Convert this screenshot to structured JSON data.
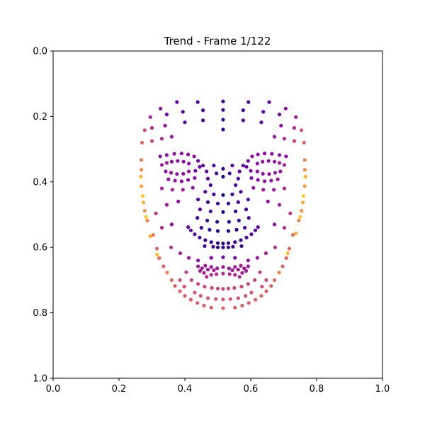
{
  "chart_data": {
    "type": "scatter",
    "title": "Trend - Frame 1/122",
    "xlabel": "",
    "ylabel": "",
    "xlim": [
      0.0,
      1.0
    ],
    "ylim": [
      1.0,
      0.0
    ],
    "y_inverted": true,
    "grid": false,
    "legend": "none",
    "colormap": "plasma",
    "colormap_stops": [
      "#0d0887",
      "#5302a3",
      "#8b0aa5",
      "#b83289",
      "#db5c68",
      "#f48849",
      "#febd2a",
      "#f0f921"
    ],
    "x_ticks": [
      "0.0",
      "0.2",
      "0.4",
      "0.6",
      "0.8",
      "1.0"
    ],
    "y_ticks": [
      "0.0",
      "0.2",
      "0.4",
      "0.6",
      "0.8",
      "1.0"
    ],
    "points": [
      [
        0.376,
        0.156,
        0.18
      ],
      [
        0.439,
        0.156,
        0.12
      ],
      [
        0.516,
        0.154,
        0.08
      ],
      [
        0.593,
        0.156,
        0.12
      ],
      [
        0.656,
        0.156,
        0.18
      ],
      [
        0.326,
        0.176,
        0.28
      ],
      [
        0.706,
        0.176,
        0.28
      ],
      [
        0.295,
        0.202,
        0.36
      ],
      [
        0.737,
        0.202,
        0.36
      ],
      [
        0.345,
        0.194,
        0.2
      ],
      [
        0.394,
        0.186,
        0.15
      ],
      [
        0.455,
        0.181,
        0.12
      ],
      [
        0.516,
        0.18,
        0.08
      ],
      [
        0.577,
        0.181,
        0.12
      ],
      [
        0.638,
        0.186,
        0.15
      ],
      [
        0.687,
        0.194,
        0.2
      ],
      [
        0.278,
        0.242,
        0.52
      ],
      [
        0.754,
        0.242,
        0.52
      ],
      [
        0.3,
        0.235,
        0.4
      ],
      [
        0.732,
        0.235,
        0.4
      ],
      [
        0.34,
        0.228,
        0.3
      ],
      [
        0.692,
        0.228,
        0.3
      ],
      [
        0.4,
        0.218,
        0.18
      ],
      [
        0.632,
        0.218,
        0.18
      ],
      [
        0.455,
        0.212,
        0.12
      ],
      [
        0.577,
        0.212,
        0.12
      ],
      [
        0.516,
        0.21,
        0.08
      ],
      [
        0.27,
        0.28,
        0.6
      ],
      [
        0.762,
        0.28,
        0.6
      ],
      [
        0.3,
        0.275,
        0.48
      ],
      [
        0.732,
        0.275,
        0.48
      ],
      [
        0.33,
        0.268,
        0.4
      ],
      [
        0.702,
        0.268,
        0.4
      ],
      [
        0.36,
        0.262,
        0.32
      ],
      [
        0.672,
        0.262,
        0.32
      ],
      [
        0.516,
        0.24,
        0.08
      ],
      [
        0.268,
        0.333,
        0.68
      ],
      [
        0.764,
        0.333,
        0.68
      ],
      [
        0.268,
        0.363,
        0.72
      ],
      [
        0.764,
        0.363,
        0.72
      ],
      [
        0.266,
        0.384,
        0.85
      ],
      [
        0.766,
        0.384,
        0.85
      ],
      [
        0.268,
        0.413,
        0.78
      ],
      [
        0.764,
        0.413,
        0.78
      ],
      [
        0.272,
        0.443,
        0.88
      ],
      [
        0.76,
        0.443,
        0.88
      ],
      [
        0.274,
        0.463,
        0.82
      ],
      [
        0.758,
        0.463,
        0.82
      ],
      [
        0.278,
        0.488,
        0.75
      ],
      [
        0.754,
        0.488,
        0.75
      ],
      [
        0.282,
        0.507,
        0.88
      ],
      [
        0.75,
        0.507,
        0.88
      ],
      [
        0.286,
        0.518,
        0.7
      ],
      [
        0.746,
        0.518,
        0.7
      ],
      [
        0.295,
        0.566,
        0.82
      ],
      [
        0.737,
        0.557,
        0.82
      ],
      [
        0.304,
        0.562,
        0.65
      ],
      [
        0.728,
        0.562,
        0.65
      ],
      [
        0.315,
        0.604,
        0.6
      ],
      [
        0.717,
        0.604,
        0.6
      ],
      [
        0.316,
        0.622,
        0.85
      ],
      [
        0.712,
        0.618,
        0.85
      ],
      [
        0.322,
        0.633,
        0.62
      ],
      [
        0.708,
        0.633,
        0.62
      ],
      [
        0.335,
        0.658,
        0.58
      ],
      [
        0.697,
        0.658,
        0.58
      ],
      [
        0.346,
        0.677,
        0.68
      ],
      [
        0.686,
        0.677,
        0.68
      ],
      [
        0.36,
        0.7,
        0.62
      ],
      [
        0.672,
        0.7,
        0.62
      ],
      [
        0.37,
        0.718,
        0.58
      ],
      [
        0.662,
        0.718,
        0.58
      ],
      [
        0.385,
        0.734,
        0.58
      ],
      [
        0.647,
        0.734,
        0.58
      ],
      [
        0.4,
        0.748,
        0.58
      ],
      [
        0.632,
        0.748,
        0.58
      ],
      [
        0.418,
        0.76,
        0.58
      ],
      [
        0.614,
        0.76,
        0.58
      ],
      [
        0.438,
        0.77,
        0.58
      ],
      [
        0.594,
        0.77,
        0.58
      ],
      [
        0.458,
        0.778,
        0.58
      ],
      [
        0.574,
        0.778,
        0.58
      ],
      [
        0.48,
        0.784,
        0.58
      ],
      [
        0.552,
        0.784,
        0.58
      ],
      [
        0.516,
        0.786,
        0.6
      ],
      [
        0.325,
        0.322,
        0.3
      ],
      [
        0.345,
        0.318,
        0.3
      ],
      [
        0.368,
        0.314,
        0.3
      ],
      [
        0.39,
        0.313,
        0.3
      ],
      [
        0.41,
        0.316,
        0.3
      ],
      [
        0.428,
        0.322,
        0.3
      ],
      [
        0.604,
        0.322,
        0.3
      ],
      [
        0.622,
        0.316,
        0.3
      ],
      [
        0.642,
        0.313,
        0.3
      ],
      [
        0.664,
        0.314,
        0.3
      ],
      [
        0.687,
        0.318,
        0.3
      ],
      [
        0.707,
        0.322,
        0.3
      ],
      [
        0.33,
        0.348,
        0.35
      ],
      [
        0.345,
        0.342,
        0.35
      ],
      [
        0.36,
        0.338,
        0.3
      ],
      [
        0.378,
        0.336,
        0.3
      ],
      [
        0.396,
        0.338,
        0.3
      ],
      [
        0.412,
        0.344,
        0.3
      ],
      [
        0.62,
        0.344,
        0.3
      ],
      [
        0.636,
        0.338,
        0.3
      ],
      [
        0.654,
        0.336,
        0.3
      ],
      [
        0.672,
        0.338,
        0.3
      ],
      [
        0.687,
        0.342,
        0.35
      ],
      [
        0.702,
        0.348,
        0.35
      ],
      [
        0.342,
        0.368,
        0.3
      ],
      [
        0.358,
        0.372,
        0.3
      ],
      [
        0.376,
        0.376,
        0.3
      ],
      [
        0.395,
        0.375,
        0.3
      ],
      [
        0.412,
        0.368,
        0.3
      ],
      [
        0.62,
        0.368,
        0.3
      ],
      [
        0.637,
        0.375,
        0.3
      ],
      [
        0.656,
        0.376,
        0.3
      ],
      [
        0.674,
        0.372,
        0.3
      ],
      [
        0.69,
        0.368,
        0.3
      ],
      [
        0.44,
        0.336,
        0.22
      ],
      [
        0.445,
        0.354,
        0.2
      ],
      [
        0.432,
        0.366,
        0.25
      ],
      [
        0.592,
        0.336,
        0.22
      ],
      [
        0.587,
        0.354,
        0.2
      ],
      [
        0.6,
        0.366,
        0.25
      ],
      [
        0.35,
        0.392,
        0.32
      ],
      [
        0.37,
        0.396,
        0.32
      ],
      [
        0.39,
        0.398,
        0.3
      ],
      [
        0.41,
        0.394,
        0.28
      ],
      [
        0.43,
        0.388,
        0.26
      ],
      [
        0.602,
        0.388,
        0.26
      ],
      [
        0.622,
        0.394,
        0.28
      ],
      [
        0.642,
        0.398,
        0.3
      ],
      [
        0.662,
        0.396,
        0.32
      ],
      [
        0.682,
        0.392,
        0.32
      ],
      [
        0.33,
        0.42,
        0.38
      ],
      [
        0.362,
        0.424,
        0.36
      ],
      [
        0.394,
        0.424,
        0.34
      ],
      [
        0.424,
        0.418,
        0.3
      ],
      [
        0.608,
        0.418,
        0.3
      ],
      [
        0.638,
        0.424,
        0.34
      ],
      [
        0.67,
        0.424,
        0.36
      ],
      [
        0.702,
        0.42,
        0.38
      ],
      [
        0.455,
        0.35,
        0.16
      ],
      [
        0.466,
        0.368,
        0.16
      ],
      [
        0.47,
        0.39,
        0.14
      ],
      [
        0.478,
        0.41,
        0.12
      ],
      [
        0.577,
        0.35,
        0.16
      ],
      [
        0.566,
        0.368,
        0.16
      ],
      [
        0.562,
        0.39,
        0.14
      ],
      [
        0.554,
        0.41,
        0.12
      ],
      [
        0.488,
        0.35,
        0.12
      ],
      [
        0.496,
        0.374,
        0.1
      ],
      [
        0.516,
        0.36,
        0.08
      ],
      [
        0.516,
        0.384,
        0.06
      ],
      [
        0.544,
        0.35,
        0.12
      ],
      [
        0.536,
        0.374,
        0.1
      ],
      [
        0.462,
        0.43,
        0.12
      ],
      [
        0.488,
        0.438,
        0.08
      ],
      [
        0.516,
        0.44,
        0.04
      ],
      [
        0.544,
        0.438,
        0.08
      ],
      [
        0.57,
        0.43,
        0.12
      ],
      [
        0.44,
        0.454,
        0.14
      ],
      [
        0.47,
        0.462,
        0.1
      ],
      [
        0.5,
        0.466,
        0.06
      ],
      [
        0.532,
        0.466,
        0.06
      ],
      [
        0.562,
        0.462,
        0.1
      ],
      [
        0.592,
        0.454,
        0.14
      ],
      [
        0.446,
        0.484,
        0.12
      ],
      [
        0.478,
        0.49,
        0.08
      ],
      [
        0.516,
        0.492,
        0.04
      ],
      [
        0.554,
        0.49,
        0.08
      ],
      [
        0.586,
        0.484,
        0.12
      ],
      [
        0.438,
        0.51,
        0.12
      ],
      [
        0.468,
        0.518,
        0.08
      ],
      [
        0.498,
        0.522,
        0.04
      ],
      [
        0.534,
        0.522,
        0.04
      ],
      [
        0.564,
        0.518,
        0.08
      ],
      [
        0.594,
        0.51,
        0.12
      ],
      [
        0.45,
        0.54,
        0.1
      ],
      [
        0.475,
        0.546,
        0.06
      ],
      [
        0.5,
        0.55,
        0.04
      ],
      [
        0.532,
        0.55,
        0.04
      ],
      [
        0.557,
        0.546,
        0.06
      ],
      [
        0.582,
        0.54,
        0.1
      ],
      [
        0.41,
        0.538,
        0.18
      ],
      [
        0.622,
        0.538,
        0.18
      ],
      [
        0.43,
        0.56,
        0.14
      ],
      [
        0.445,
        0.57,
        0.12
      ],
      [
        0.462,
        0.578,
        0.1
      ],
      [
        0.48,
        0.584,
        0.08
      ],
      [
        0.5,
        0.587,
        0.06
      ],
      [
        0.516,
        0.588,
        0.05
      ],
      [
        0.532,
        0.587,
        0.06
      ],
      [
        0.552,
        0.584,
        0.08
      ],
      [
        0.57,
        0.578,
        0.1
      ],
      [
        0.587,
        0.57,
        0.12
      ],
      [
        0.602,
        0.56,
        0.14
      ],
      [
        0.418,
        0.548,
        0.16
      ],
      [
        0.614,
        0.548,
        0.16
      ],
      [
        0.486,
        0.598,
        0.1
      ],
      [
        0.5,
        0.6,
        0.08
      ],
      [
        0.516,
        0.6,
        0.06
      ],
      [
        0.532,
        0.6,
        0.08
      ],
      [
        0.546,
        0.598,
        0.1
      ],
      [
        0.46,
        0.596,
        0.12
      ],
      [
        0.572,
        0.596,
        0.12
      ],
      [
        0.33,
        0.54,
        0.4
      ],
      [
        0.702,
        0.54,
        0.4
      ],
      [
        0.36,
        0.53,
        0.3
      ],
      [
        0.672,
        0.53,
        0.3
      ],
      [
        0.312,
        0.496,
        0.44
      ],
      [
        0.72,
        0.496,
        0.44
      ],
      [
        0.345,
        0.47,
        0.34
      ],
      [
        0.687,
        0.47,
        0.34
      ],
      [
        0.38,
        0.46,
        0.3
      ],
      [
        0.652,
        0.46,
        0.3
      ],
      [
        0.358,
        0.6,
        0.42
      ],
      [
        0.674,
        0.6,
        0.42
      ],
      [
        0.386,
        0.618,
        0.38
      ],
      [
        0.646,
        0.618,
        0.38
      ],
      [
        0.412,
        0.632,
        0.34
      ],
      [
        0.62,
        0.632,
        0.34
      ],
      [
        0.44,
        0.64,
        0.3
      ],
      [
        0.592,
        0.64,
        0.3
      ],
      [
        0.48,
        0.632,
        0.24
      ],
      [
        0.516,
        0.63,
        0.22
      ],
      [
        0.552,
        0.632,
        0.24
      ],
      [
        0.44,
        0.658,
        0.34
      ],
      [
        0.452,
        0.664,
        0.34
      ],
      [
        0.462,
        0.656,
        0.34
      ],
      [
        0.47,
        0.668,
        0.34
      ],
      [
        0.48,
        0.66,
        0.34
      ],
      [
        0.488,
        0.67,
        0.34
      ],
      [
        0.498,
        0.664,
        0.34
      ],
      [
        0.516,
        0.66,
        0.34
      ],
      [
        0.534,
        0.664,
        0.34
      ],
      [
        0.544,
        0.67,
        0.34
      ],
      [
        0.552,
        0.66,
        0.34
      ],
      [
        0.562,
        0.668,
        0.34
      ],
      [
        0.57,
        0.656,
        0.34
      ],
      [
        0.58,
        0.664,
        0.34
      ],
      [
        0.592,
        0.658,
        0.34
      ],
      [
        0.446,
        0.672,
        0.36
      ],
      [
        0.458,
        0.678,
        0.36
      ],
      [
        0.574,
        0.678,
        0.36
      ],
      [
        0.586,
        0.672,
        0.36
      ],
      [
        0.466,
        0.69,
        0.4
      ],
      [
        0.48,
        0.684,
        0.4
      ],
      [
        0.496,
        0.682,
        0.4
      ],
      [
        0.516,
        0.68,
        0.4
      ],
      [
        0.536,
        0.682,
        0.4
      ],
      [
        0.552,
        0.684,
        0.4
      ],
      [
        0.566,
        0.69,
        0.4
      ],
      [
        0.404,
        0.676,
        0.46
      ],
      [
        0.628,
        0.676,
        0.46
      ],
      [
        0.42,
        0.7,
        0.48
      ],
      [
        0.44,
        0.712,
        0.5
      ],
      [
        0.46,
        0.72,
        0.5
      ],
      [
        0.482,
        0.724,
        0.5
      ],
      [
        0.5,
        0.726,
        0.5
      ],
      [
        0.516,
        0.727,
        0.5
      ],
      [
        0.532,
        0.726,
        0.5
      ],
      [
        0.55,
        0.724,
        0.5
      ],
      [
        0.572,
        0.72,
        0.5
      ],
      [
        0.592,
        0.712,
        0.5
      ],
      [
        0.612,
        0.7,
        0.48
      ],
      [
        0.43,
        0.738,
        0.55
      ],
      [
        0.448,
        0.748,
        0.55
      ],
      [
        0.47,
        0.755,
        0.55
      ],
      [
        0.494,
        0.758,
        0.55
      ],
      [
        0.516,
        0.759,
        0.55
      ],
      [
        0.538,
        0.758,
        0.55
      ],
      [
        0.562,
        0.755,
        0.55
      ],
      [
        0.584,
        0.748,
        0.55
      ],
      [
        0.602,
        0.738,
        0.55
      ],
      [
        0.385,
        0.7,
        0.52
      ],
      [
        0.647,
        0.7,
        0.52
      ],
      [
        0.398,
        0.72,
        0.54
      ],
      [
        0.634,
        0.72,
        0.54
      ]
    ]
  }
}
